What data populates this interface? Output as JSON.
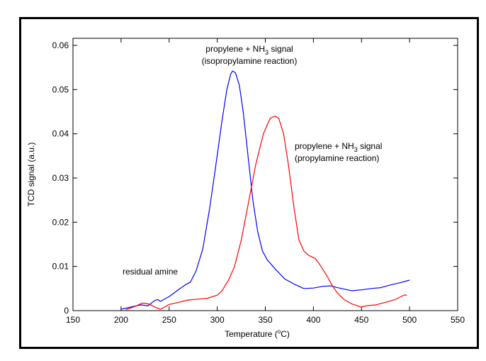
{
  "chart_data": {
    "type": "line",
    "title": "",
    "xlabel": "Temperature (",
    "xlabel_sup": "o",
    "xlabel_end": "C)",
    "ylabel": "TCD signal (a.u.)",
    "xlim": [
      150,
      550
    ],
    "ylim": [
      0,
      0.0616
    ],
    "xticks": [
      150,
      200,
      250,
      300,
      350,
      400,
      450,
      500,
      550
    ],
    "xtick_labels": [
      "150",
      "200",
      "250",
      "300",
      "350",
      "400",
      "450",
      "500",
      "550"
    ],
    "yticks": [
      0,
      0.01,
      0.02,
      0.03,
      0.04,
      0.05,
      0.06
    ],
    "ytick_labels": [
      "0",
      "0.01",
      "0.02",
      "0.03",
      "0.04",
      "0.05",
      "0.06"
    ],
    "grid": false,
    "series": [
      {
        "name": "isopropylamine reaction",
        "color": "#0000ff",
        "x": [
          200,
          210,
          220,
          228,
          235,
          238,
          241,
          250,
          260,
          268,
          272,
          278,
          285,
          292,
          298,
          305,
          310,
          314,
          316,
          319,
          323,
          327,
          332,
          337,
          342,
          347,
          352,
          360,
          370,
          380,
          390,
          400,
          410,
          418,
          425,
          440,
          450,
          460,
          470,
          480,
          490,
          500
        ],
        "y": [
          0.0003,
          0.0008,
          0.0013,
          0.0011,
          0.0023,
          0.0025,
          0.0021,
          0.0032,
          0.0048,
          0.006,
          0.0064,
          0.009,
          0.014,
          0.023,
          0.032,
          0.043,
          0.05,
          0.0535,
          0.0542,
          0.0538,
          0.051,
          0.045,
          0.035,
          0.025,
          0.018,
          0.0135,
          0.0115,
          0.0095,
          0.0072,
          0.006,
          0.005,
          0.0051,
          0.0055,
          0.0056,
          0.0052,
          0.0045,
          0.0047,
          0.005,
          0.0052,
          0.0058,
          0.0063,
          0.0069
        ]
      },
      {
        "name": "propylamine reaction",
        "color": "#ff0000",
        "x": [
          205,
          215,
          222,
          227,
          232,
          236,
          241,
          245,
          250,
          260,
          270,
          280,
          290,
          300,
          305,
          312,
          318,
          325,
          333,
          340,
          348,
          355,
          360,
          364,
          369,
          374,
          380,
          385,
          390,
          395,
          402,
          408,
          415,
          420,
          425,
          432,
          440,
          450,
          455,
          465,
          475,
          485,
          495,
          497
        ],
        "y": [
          0.0002,
          0.001,
          0.0017,
          0.0016,
          0.0012,
          0.0007,
          0.0003,
          0.0008,
          0.0014,
          0.0019,
          0.0024,
          0.0026,
          0.0028,
          0.0035,
          0.0045,
          0.007,
          0.01,
          0.016,
          0.025,
          0.033,
          0.04,
          0.0435,
          0.044,
          0.0435,
          0.04,
          0.033,
          0.023,
          0.016,
          0.0135,
          0.0125,
          0.0118,
          0.01,
          0.0075,
          0.0055,
          0.004,
          0.0025,
          0.0015,
          0.0008,
          0.0011,
          0.0013,
          0.0019,
          0.0025,
          0.0036,
          0.0034
        ]
      }
    ],
    "annotations": [
      {
        "line1_pre": "propylene + NH",
        "sub": "3",
        "line1_post": " signal",
        "line2": "(isopropylamine reaction)"
      },
      {
        "line1_pre": "propylene + NH",
        "sub": "3",
        "line1_post": " signal",
        "line2": "(propylamine reaction)"
      },
      {
        "line1_pre": "residual amine"
      }
    ]
  }
}
